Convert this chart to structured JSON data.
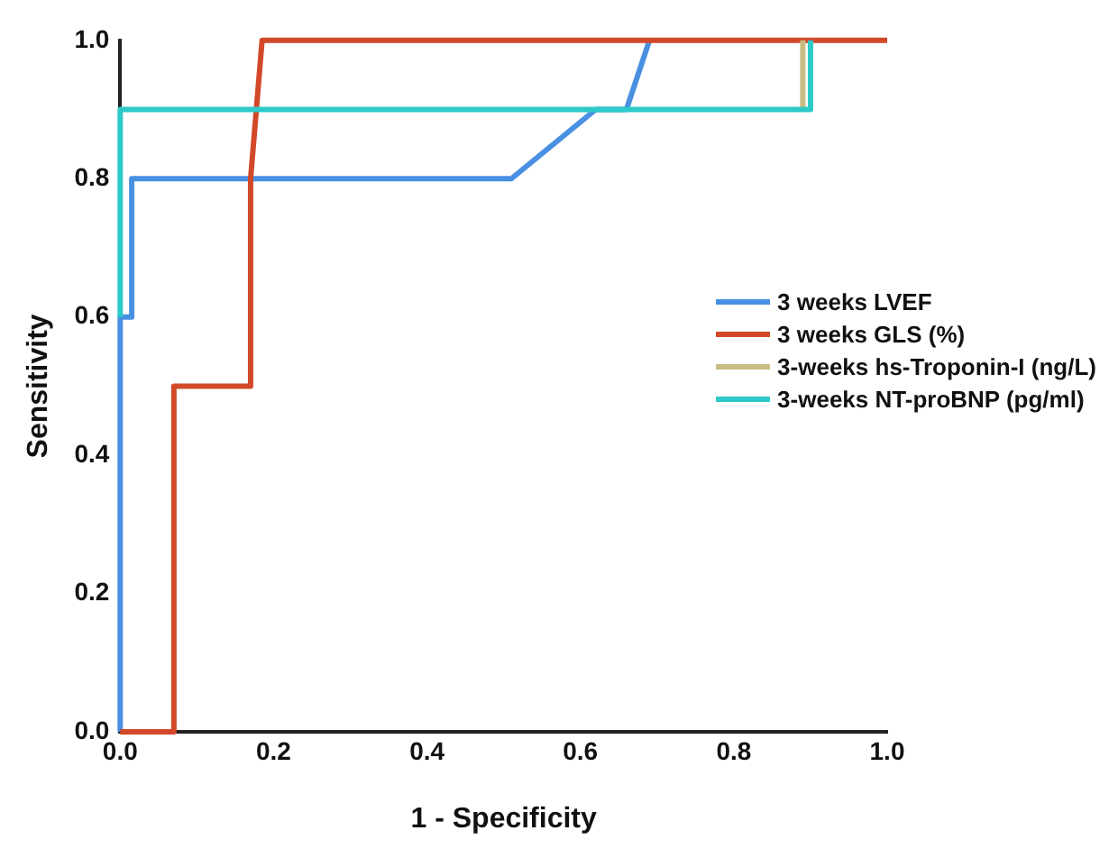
{
  "chart_data": {
    "type": "line",
    "xlabel": "1 - Specificity",
    "ylabel": "Sensitivity",
    "xlim": [
      0,
      1
    ],
    "ylim": [
      0,
      1
    ],
    "xticks": [
      {
        "value": 0,
        "label": "0.0"
      },
      0.2,
      0.4,
      0.6,
      0.8,
      {
        "value": 1,
        "label": "1.0"
      }
    ],
    "yticks": [
      {
        "value": 0,
        "label": "0.0"
      },
      0.2,
      0.4,
      0.6,
      0.8,
      {
        "value": 1,
        "label": "1.0"
      }
    ],
    "grid": false,
    "legend": "right",
    "marker": "none",
    "line_style": "solid",
    "series": [
      {
        "name": "3 weeks LVEF",
        "color": "#4a90e2",
        "x": [
          0,
          0,
          0.015,
          0.015,
          0.51,
          0.62,
          0.66,
          0.69
        ],
        "values": [
          0,
          0.6,
          0.6,
          0.8,
          0.8,
          0.9,
          0.9,
          1
        ]
      },
      {
        "name": "3 weeks GLS (%)",
        "color": "#d2492a",
        "x": [
          0,
          0.07,
          0.07,
          0.17,
          0.17,
          0.185,
          1
        ],
        "values": [
          0,
          0,
          0.5,
          0.5,
          0.8,
          1,
          1
        ]
      },
      {
        "name": "3-weeks hs-Troponin-I (ng/L)",
        "color": "#c8bd82",
        "x": [
          0.89,
          0.89
        ],
        "values": [
          0.9,
          1
        ]
      },
      {
        "name": "3-weeks NT-proBNP (pg/ml)",
        "color": "#2ec9c9",
        "x": [
          0,
          0,
          0.9,
          0.9
        ],
        "values": [
          0.6,
          0.9,
          0.9,
          1
        ]
      }
    ]
  }
}
